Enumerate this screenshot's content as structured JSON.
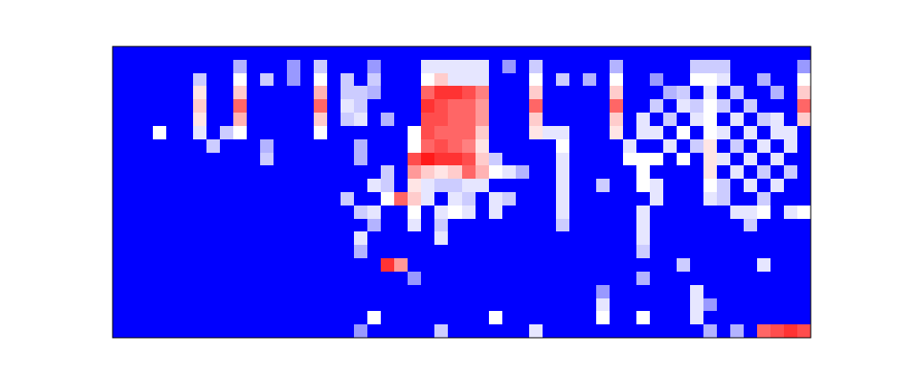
{
  "chart_data": {
    "type": "heatmap",
    "tick_labels": false,
    "color_range": [
      0,
      1
    ],
    "cells": [
      [
        0,
        0,
        0,
        0,
        0,
        0,
        0,
        0,
        0,
        0,
        0,
        0,
        0,
        0,
        0,
        0,
        0,
        0,
        0,
        0,
        0,
        0,
        0,
        0,
        0,
        0,
        0,
        0,
        0,
        0,
        0,
        0,
        0,
        0,
        0,
        0,
        0,
        0,
        0,
        0,
        0,
        0,
        0,
        0,
        0,
        0,
        0,
        0,
        0,
        0,
        0,
        0
      ],
      [
        0,
        0,
        0,
        0,
        0,
        0,
        0,
        0,
        0,
        0.35,
        0,
        0,
        0,
        0.3,
        0,
        0.4,
        0,
        0,
        0,
        0.3,
        0,
        0,
        0,
        0.45,
        0.45,
        0.45,
        0.45,
        0.45,
        0,
        0.3,
        0,
        0.4,
        0,
        0,
        0,
        0,
        0,
        0.35,
        0,
        0,
        0,
        0,
        0,
        0.4,
        0.4,
        0.4,
        0,
        0,
        0,
        0,
        0,
        0.3
      ],
      [
        0,
        0,
        0,
        0,
        0,
        0,
        0.4,
        0,
        0,
        0.5,
        0,
        0.4,
        0,
        0.3,
        0,
        0.5,
        0,
        0.4,
        0,
        0.4,
        0,
        0,
        0,
        0.5,
        0.6,
        0.45,
        0.45,
        0.45,
        0,
        0,
        0,
        0.5,
        0,
        0.4,
        0,
        0.35,
        0,
        0.5,
        0,
        0,
        0.3,
        0,
        0,
        0.5,
        0.5,
        0.45,
        0,
        0,
        0.35,
        0,
        0,
        0.5
      ],
      [
        0,
        0,
        0,
        0,
        0,
        0,
        0.55,
        0,
        0,
        0.6,
        0,
        0,
        0,
        0,
        0,
        0.65,
        0,
        0.4,
        0.4,
        0.35,
        0,
        0,
        0,
        0.8,
        0.9,
        0.9,
        0.85,
        0.75,
        0,
        0,
        0,
        0.6,
        0,
        0,
        0,
        0,
        0,
        0.6,
        0,
        0,
        0,
        0.35,
        0.4,
        0,
        0.45,
        0,
        0.4,
        0,
        0,
        0.35,
        0,
        0.6
      ],
      [
        0,
        0,
        0,
        0,
        0,
        0,
        0.6,
        0,
        0,
        0.8,
        0,
        0,
        0,
        0,
        0,
        0.8,
        0,
        0.45,
        0.4,
        0,
        0,
        0,
        0,
        0.9,
        0.85,
        0.8,
        0.8,
        0.7,
        0,
        0,
        0,
        0.8,
        0,
        0,
        0,
        0,
        0,
        0.8,
        0,
        0,
        0.4,
        0,
        0.45,
        0.4,
        0.5,
        0.4,
        0,
        0.4,
        0,
        0,
        0,
        0.8
      ],
      [
        0,
        0,
        0,
        0,
        0,
        0,
        0.55,
        0,
        0,
        0.65,
        0,
        0,
        0,
        0,
        0,
        0.6,
        0,
        0.4,
        0.45,
        0,
        0.35,
        0,
        0,
        0.85,
        0.85,
        0.8,
        0.8,
        0.7,
        0,
        0,
        0,
        0.6,
        0,
        0,
        0,
        0,
        0,
        0.6,
        0,
        0.45,
        0,
        0.4,
        0,
        0.45,
        0.5,
        0,
        0.45,
        0,
        0.4,
        0.45,
        0,
        0.6
      ],
      [
        0,
        0,
        0,
        0.5,
        0,
        0,
        0.45,
        0,
        0.4,
        0.5,
        0,
        0,
        0,
        0,
        0,
        0.5,
        0,
        0,
        0,
        0,
        0,
        0,
        0.5,
        0.85,
        0.8,
        0.8,
        0.8,
        0.6,
        0,
        0,
        0,
        0.55,
        0.45,
        0.45,
        0,
        0,
        0,
        0.55,
        0,
        0.45,
        0.45,
        0,
        0.5,
        0,
        0.5,
        0.45,
        0,
        0.45,
        0,
        0.45,
        0.45,
        0
      ],
      [
        0,
        0,
        0,
        0,
        0,
        0,
        0,
        0.4,
        0,
        0,
        0,
        0.35,
        0,
        0,
        0,
        0,
        0,
        0,
        0.35,
        0,
        0,
        0,
        0.5,
        0.8,
        0.85,
        0.8,
        0.75,
        0.55,
        0,
        0,
        0,
        0,
        0,
        0.5,
        0,
        0,
        0,
        0,
        0.45,
        0,
        0,
        0.45,
        0,
        0.4,
        0.55,
        0,
        0.4,
        0,
        0.45,
        0,
        0.45,
        0
      ],
      [
        0,
        0,
        0,
        0,
        0,
        0,
        0,
        0,
        0,
        0,
        0,
        0.4,
        0,
        0,
        0,
        0,
        0,
        0,
        0.35,
        0,
        0,
        0,
        0.85,
        0.95,
        0.9,
        0.9,
        0.85,
        0.6,
        0.4,
        0,
        0,
        0,
        0,
        0.45,
        0,
        0,
        0,
        0,
        0.5,
        0.5,
        0.5,
        0,
        0.5,
        0,
        0.55,
        0.45,
        0,
        0.45,
        0,
        0.45,
        0,
        0
      ],
      [
        0,
        0,
        0,
        0,
        0,
        0,
        0,
        0,
        0,
        0,
        0,
        0,
        0,
        0,
        0,
        0,
        0,
        0,
        0,
        0,
        0.4,
        0,
        0.7,
        0.6,
        0.55,
        0.6,
        0.8,
        0.65,
        0.5,
        0.45,
        0.35,
        0,
        0,
        0.45,
        0,
        0,
        0,
        0,
        0,
        0.5,
        0,
        0,
        0,
        0,
        0.55,
        0,
        0.45,
        0,
        0.4,
        0,
        0.4,
        0
      ],
      [
        0,
        0,
        0,
        0,
        0,
        0,
        0,
        0,
        0,
        0,
        0,
        0,
        0,
        0,
        0,
        0,
        0,
        0,
        0,
        0.45,
        0.4,
        0,
        0.55,
        0.45,
        0.4,
        0.4,
        0.45,
        0.45,
        0,
        0,
        0,
        0,
        0,
        0.45,
        0,
        0,
        0.4,
        0,
        0,
        0.5,
        0.45,
        0,
        0,
        0,
        0.5,
        0.4,
        0,
        0.45,
        0,
        0.45,
        0,
        0
      ],
      [
        0,
        0,
        0,
        0,
        0,
        0,
        0,
        0,
        0,
        0,
        0,
        0,
        0,
        0,
        0,
        0,
        0,
        0.4,
        0,
        0,
        0.5,
        0.8,
        0.6,
        0.45,
        0,
        0.45,
        0.4,
        0,
        0.45,
        0.4,
        0,
        0,
        0,
        0.45,
        0,
        0,
        0,
        0,
        0,
        0,
        0.45,
        0,
        0,
        0,
        0.45,
        0.4,
        0,
        0,
        0.4,
        0,
        0,
        0
      ],
      [
        0,
        0,
        0,
        0,
        0,
        0,
        0,
        0,
        0,
        0,
        0,
        0,
        0,
        0,
        0,
        0,
        0,
        0,
        0.4,
        0.45,
        0,
        0,
        0.5,
        0,
        0.45,
        0.5,
        0.45,
        0,
        0.45,
        0,
        0,
        0,
        0,
        0.45,
        0,
        0,
        0,
        0,
        0,
        0.45,
        0,
        0,
        0,
        0,
        0,
        0,
        0.45,
        0.45,
        0.5,
        0,
        0.45,
        0.5
      ],
      [
        0,
        0,
        0,
        0,
        0,
        0,
        0,
        0,
        0,
        0,
        0,
        0,
        0,
        0,
        0,
        0,
        0,
        0,
        0,
        0.35,
        0,
        0,
        0.45,
        0,
        0.4,
        0,
        0,
        0,
        0,
        0,
        0,
        0,
        0,
        0.4,
        0,
        0,
        0,
        0,
        0,
        0.45,
        0,
        0,
        0,
        0,
        0,
        0,
        0,
        0.4,
        0,
        0,
        0,
        0
      ],
      [
        0,
        0,
        0,
        0,
        0,
        0,
        0,
        0,
        0,
        0,
        0,
        0,
        0,
        0,
        0,
        0,
        0,
        0,
        0.45,
        0,
        0,
        0,
        0,
        0,
        0.45,
        0,
        0,
        0,
        0,
        0,
        0,
        0,
        0,
        0,
        0,
        0,
        0,
        0,
        0,
        0.45,
        0,
        0,
        0,
        0,
        0,
        0,
        0,
        0,
        0,
        0,
        0,
        0
      ],
      [
        0,
        0,
        0,
        0,
        0,
        0,
        0,
        0,
        0,
        0,
        0,
        0,
        0,
        0,
        0,
        0,
        0,
        0,
        0.35,
        0,
        0,
        0,
        0,
        0,
        0,
        0,
        0,
        0,
        0,
        0,
        0,
        0,
        0,
        0,
        0,
        0,
        0,
        0,
        0,
        0.4,
        0,
        0,
        0,
        0,
        0,
        0,
        0,
        0,
        0,
        0,
        0,
        0
      ],
      [
        0,
        0,
        0,
        0,
        0,
        0,
        0,
        0,
        0,
        0,
        0,
        0,
        0,
        0,
        0,
        0,
        0,
        0,
        0,
        0,
        0.9,
        0.7,
        0,
        0,
        0,
        0,
        0,
        0,
        0,
        0,
        0,
        0,
        0,
        0,
        0,
        0,
        0,
        0,
        0,
        0,
        0,
        0,
        0.4,
        0,
        0,
        0,
        0,
        0,
        0.45,
        0,
        0,
        0
      ],
      [
        0,
        0,
        0,
        0,
        0,
        0,
        0,
        0,
        0,
        0,
        0,
        0,
        0,
        0,
        0,
        0,
        0,
        0,
        0,
        0,
        0,
        0,
        0.3,
        0,
        0,
        0,
        0,
        0,
        0,
        0,
        0,
        0,
        0,
        0,
        0,
        0,
        0,
        0,
        0,
        0.35,
        0,
        0,
        0,
        0,
        0,
        0,
        0,
        0,
        0,
        0,
        0,
        0
      ],
      [
        0,
        0,
        0,
        0,
        0,
        0,
        0,
        0,
        0,
        0,
        0,
        0,
        0,
        0,
        0,
        0,
        0,
        0,
        0,
        0,
        0,
        0,
        0,
        0,
        0,
        0,
        0,
        0,
        0,
        0,
        0,
        0,
        0,
        0,
        0,
        0,
        0.3,
        0,
        0,
        0,
        0,
        0,
        0,
        0.45,
        0,
        0,
        0,
        0,
        0,
        0,
        0,
        0
      ],
      [
        0,
        0,
        0,
        0,
        0,
        0,
        0,
        0,
        0,
        0,
        0,
        0,
        0,
        0,
        0,
        0,
        0,
        0,
        0,
        0,
        0,
        0,
        0,
        0,
        0,
        0,
        0,
        0,
        0,
        0,
        0,
        0,
        0,
        0,
        0,
        0,
        0.45,
        0,
        0,
        0,
        0,
        0,
        0,
        0.45,
        0.3,
        0,
        0,
        0,
        0,
        0,
        0,
        0
      ],
      [
        0,
        0,
        0,
        0,
        0,
        0,
        0,
        0,
        0,
        0,
        0,
        0,
        0,
        0,
        0,
        0,
        0,
        0,
        0,
        0.5,
        0,
        0,
        0,
        0,
        0,
        0,
        0,
        0,
        0.5,
        0,
        0,
        0,
        0,
        0,
        0,
        0,
        0.5,
        0,
        0,
        0.5,
        0,
        0,
        0,
        0.45,
        0,
        0,
        0,
        0,
        0,
        0,
        0,
        0
      ],
      [
        0,
        0,
        0,
        0,
        0,
        0,
        0,
        0,
        0,
        0,
        0,
        0,
        0,
        0,
        0,
        0,
        0,
        0,
        0.3,
        0,
        0,
        0,
        0,
        0,
        0.4,
        0,
        0,
        0,
        0,
        0,
        0,
        0.45,
        0,
        0,
        0,
        0,
        0,
        0,
        0,
        0,
        0,
        0,
        0,
        0,
        0.35,
        0,
        0.35,
        0,
        0.8,
        0.85,
        0.9,
        0.85
      ]
    ]
  }
}
